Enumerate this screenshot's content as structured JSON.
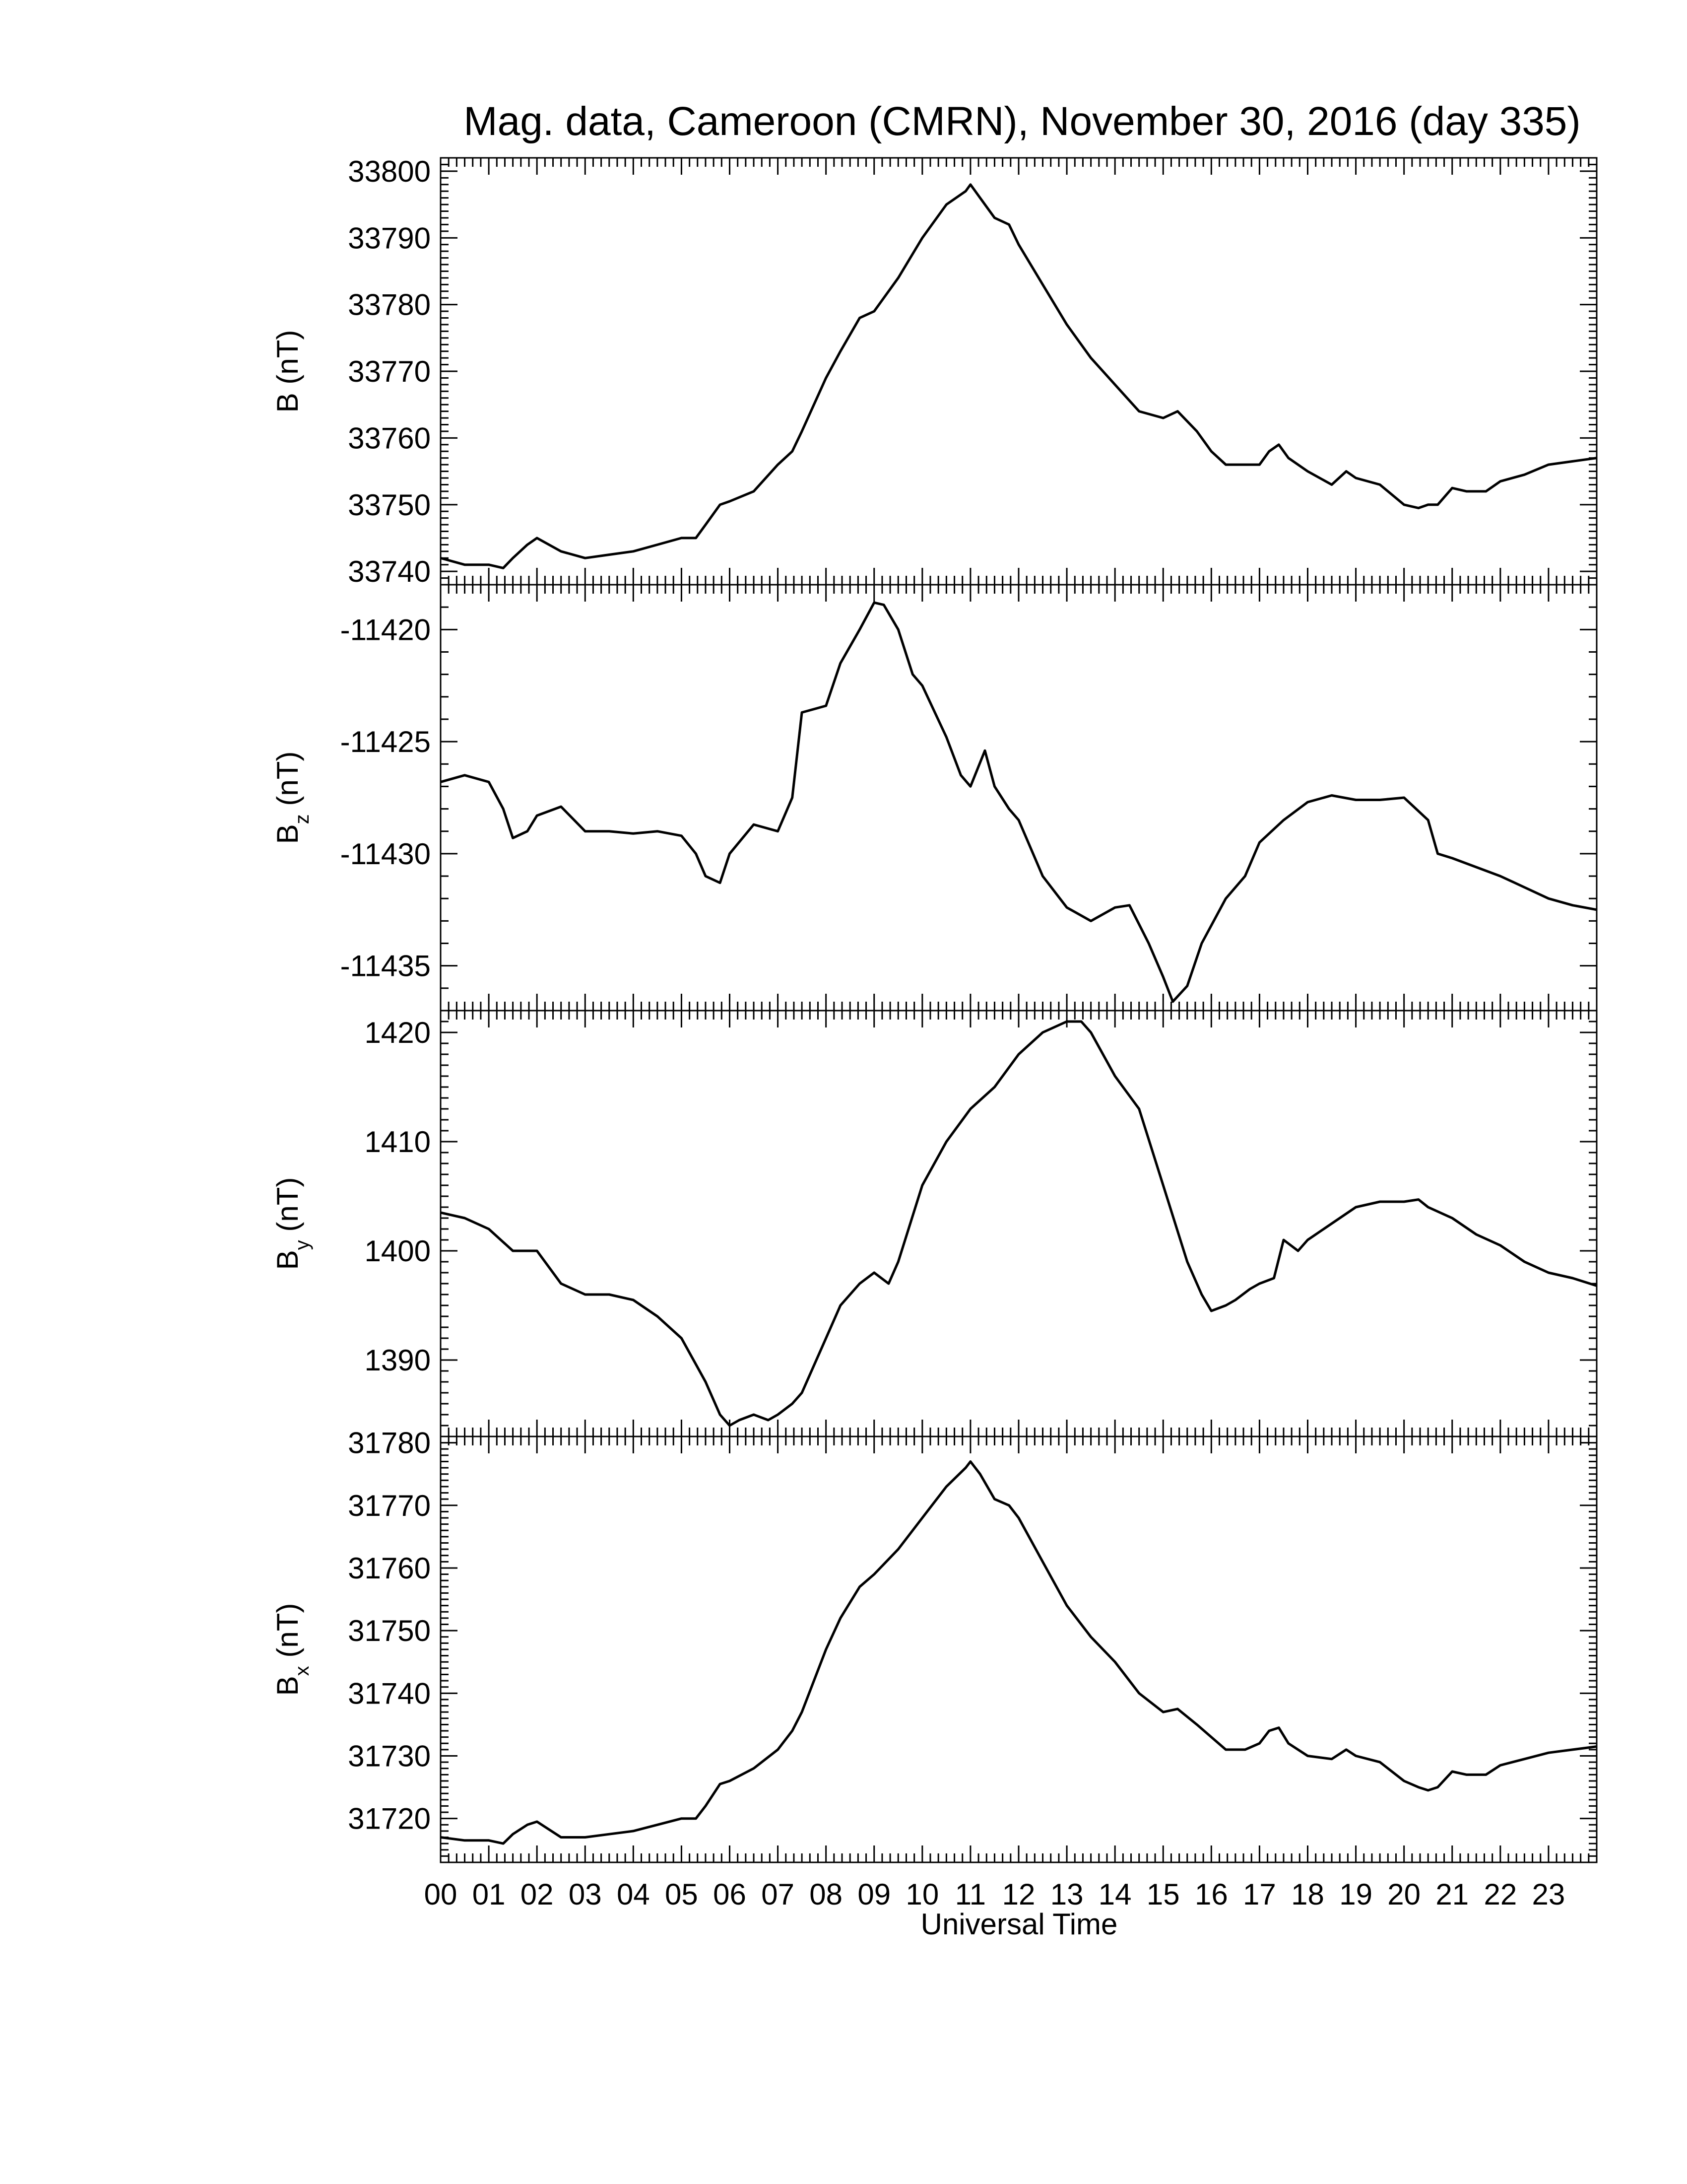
{
  "chart_data": {
    "type": "line",
    "title": "Mag. data, Cameroon (CMRN), November 30, 2016 (day 335)",
    "xlabel": "Universal Time",
    "x_ticks": [
      "00",
      "01",
      "02",
      "03",
      "04",
      "05",
      "06",
      "07",
      "08",
      "09",
      "10",
      "11",
      "12",
      "13",
      "14",
      "15",
      "16",
      "17",
      "18",
      "19",
      "20",
      "21",
      "22",
      "23"
    ],
    "xlim": [
      0,
      24
    ],
    "panels": [
      {
        "label_main": "B",
        "label_sub": "",
        "label_unit": "(nT)",
        "ylim": [
          33738,
          33802
        ],
        "y_ticks": [
          33740,
          33750,
          33760,
          33770,
          33780,
          33790,
          33800
        ],
        "series": [
          {
            "x": [
              0,
              0.5,
              1.0,
              1.3,
              1.5,
              1.8,
              2.0,
              2.5,
              3.0,
              3.5,
              4.0,
              4.5,
              5.0,
              5.3,
              5.5,
              5.8,
              6.0,
              6.5,
              7.0,
              7.3,
              7.5,
              8.0,
              8.3,
              8.7,
              9.0,
              9.5,
              10.0,
              10.5,
              10.9,
              11.0,
              11.1,
              11.2,
              11.5,
              11.8,
              12.0,
              12.5,
              13.0,
              13.5,
              14.0,
              14.5,
              15.0,
              15.3,
              15.7,
              16.0,
              16.3,
              16.7,
              17.0,
              17.2,
              17.4,
              17.6,
              18.0,
              18.5,
              18.8,
              19.0,
              19.5,
              20.0,
              20.3,
              20.5,
              20.7,
              21.0,
              21.3,
              21.7,
              22.0,
              22.5,
              23.0,
              23.5,
              24.0
            ],
            "y": [
              33742,
              33741,
              33741,
              33740.5,
              33742,
              33744,
              33745,
              33743,
              33742,
              33742.5,
              33743,
              33744,
              33745,
              33745,
              33747,
              33750,
              33750.5,
              33752,
              33756,
              33758,
              33761,
              33769,
              33773,
              33778,
              33779,
              33784,
              33790,
              33795,
              33797,
              33798,
              33797,
              33796,
              33793,
              33792,
              33789,
              33783,
              33777,
              33772,
              33768,
              33764,
              33763,
              33764,
              33761,
              33758,
              33756,
              33756,
              33756,
              33758,
              33759,
              33757,
              33755,
              33753,
              33755,
              33754,
              33753,
              33750,
              33749.5,
              33750,
              33750,
              33752.5,
              33752,
              33752,
              33753.5,
              33754.5,
              33756,
              33756.5,
              33757
            ]
          }
        ]
      },
      {
        "label_main": "B",
        "label_sub": "z",
        "label_unit": "(nT)",
        "ylim": [
          -11437,
          -11418
        ],
        "y_ticks": [
          -11420,
          -11425,
          -11430,
          -11435
        ],
        "series": [
          {
            "x": [
              0,
              0.5,
              1.0,
              1.3,
              1.5,
              1.8,
              2.0,
              2.5,
              3.0,
              3.5,
              4.0,
              4.5,
              5.0,
              5.3,
              5.5,
              5.8,
              6.0,
              6.5,
              7.0,
              7.3,
              7.5,
              8.0,
              8.3,
              8.7,
              9.0,
              9.2,
              9.5,
              9.8,
              10.0,
              10.5,
              10.8,
              11.0,
              11.3,
              11.5,
              11.8,
              12.0,
              12.5,
              13.0,
              13.5,
              14.0,
              14.3,
              14.7,
              15.0,
              15.2,
              15.5,
              15.8,
              16.0,
              16.3,
              16.7,
              17.0,
              17.5,
              18.0,
              18.5,
              19.0,
              19.5,
              20.0,
              20.5,
              20.7,
              21.0,
              21.5,
              22.0,
              22.5,
              23.0,
              23.5,
              24.0
            ],
            "y": [
              -11426.8,
              -11426.5,
              -11426.8,
              -11428,
              -11429.3,
              -11429,
              -11428.3,
              -11427.9,
              -11429,
              -11429,
              -11429.1,
              -11429,
              -11429.2,
              -11430,
              -11431,
              -11431.3,
              -11430,
              -11428.7,
              -11429,
              -11427.5,
              -11423.7,
              -11423.4,
              -11421.5,
              -11420,
              -11418.8,
              -11418.9,
              -11420,
              -11422,
              -11422.5,
              -11424.8,
              -11426.5,
              -11427,
              -11425.4,
              -11427,
              -11428,
              -11428.5,
              -11431,
              -11432.4,
              -11433,
              -11432.4,
              -11432.3,
              -11434,
              -11435.5,
              -11436.6,
              -11435.9,
              -11434,
              -11433.2,
              -11432,
              -11431,
              -11429.5,
              -11428.5,
              -11427.7,
              -11427.4,
              -11427.6,
              -11427.6,
              -11427.5,
              -11428.5,
              -11430,
              -11430.2,
              -11430.6,
              -11431,
              -11431.5,
              -11432,
              -11432.3,
              -11432.5
            ]
          }
        ]
      },
      {
        "label_main": "B",
        "label_sub": "y",
        "label_unit": "(nT)",
        "ylim": [
          1383,
          1422
        ],
        "y_ticks": [
          1390,
          1400,
          1410,
          1420
        ],
        "series": [
          {
            "x": [
              0,
              0.5,
              1.0,
              1.5,
              2.0,
              2.5,
              3.0,
              3.5,
              4.0,
              4.5,
              5.0,
              5.5,
              5.8,
              6.0,
              6.2,
              6.5,
              6.8,
              7.0,
              7.3,
              7.5,
              8.0,
              8.3,
              8.7,
              9.0,
              9.3,
              9.5,
              10.0,
              10.5,
              11.0,
              11.5,
              12.0,
              12.5,
              13.0,
              13.3,
              13.5,
              14.0,
              14.5,
              15.0,
              15.5,
              15.8,
              16.0,
              16.3,
              16.5,
              16.8,
              17.0,
              17.3,
              17.5,
              17.8,
              18.0,
              18.5,
              19.0,
              19.5,
              20.0,
              20.3,
              20.5,
              21.0,
              21.5,
              22.0,
              22.5,
              23.0,
              23.5,
              24.0
            ],
            "y": [
              1403.5,
              1403,
              1402,
              1400,
              1400,
              1397,
              1396,
              1396,
              1395.5,
              1394,
              1392,
              1388,
              1385,
              1384,
              1384.5,
              1385,
              1384.5,
              1385,
              1386,
              1387,
              1392,
              1395,
              1397,
              1398,
              1397,
              1399,
              1406,
              1410,
              1413,
              1415,
              1418,
              1420,
              1421,
              1421,
              1420,
              1416,
              1413,
              1406,
              1399,
              1396,
              1394.5,
              1395,
              1395.5,
              1396.5,
              1397,
              1397.5,
              1401,
              1400,
              1401,
              1402.5,
              1404,
              1404.5,
              1404.5,
              1404.7,
              1404,
              1403,
              1401.5,
              1400.5,
              1399,
              1398,
              1397.5,
              1396.8
            ]
          }
        ]
      },
      {
        "label_main": "B",
        "label_sub": "x",
        "label_unit": "(nT)",
        "ylim": [
          31713,
          31781
        ],
        "y_ticks": [
          31720,
          31730,
          31740,
          31750,
          31760,
          31770,
          31780
        ],
        "series": [
          {
            "x": [
              0,
              0.5,
              1.0,
              1.3,
              1.5,
              1.8,
              2.0,
              2.5,
              3.0,
              3.5,
              4.0,
              4.5,
              5.0,
              5.3,
              5.5,
              5.8,
              6.0,
              6.5,
              7.0,
              7.3,
              7.5,
              8.0,
              8.3,
              8.7,
              9.0,
              9.5,
              10.0,
              10.5,
              10.9,
              11.0,
              11.1,
              11.2,
              11.5,
              11.8,
              12.0,
              12.5,
              13.0,
              13.5,
              14.0,
              14.5,
              15.0,
              15.3,
              15.7,
              16.0,
              16.3,
              16.7,
              17.0,
              17.2,
              17.4,
              17.6,
              18.0,
              18.5,
              18.8,
              19.0,
              19.5,
              20.0,
              20.3,
              20.5,
              20.7,
              21.0,
              21.3,
              21.7,
              22.0,
              22.5,
              23.0,
              23.5,
              24.0
            ],
            "y": [
              31717,
              31716.5,
              31716.5,
              31716,
              31717.5,
              31719,
              31719.5,
              31717,
              31717,
              31717.5,
              31718,
              31719,
              31720,
              31720,
              31722,
              31725.5,
              31726,
              31728,
              31731,
              31734,
              31737,
              31747,
              31752,
              31757,
              31759,
              31763,
              31768,
              31773,
              31776,
              31777,
              31776,
              31775,
              31771,
              31770,
              31768,
              31761,
              31754,
              31749,
              31745,
              31740,
              31737,
              31737.5,
              31735,
              31733,
              31731,
              31731,
              31732,
              31734,
              31734.5,
              31732,
              31730,
              31729.5,
              31731,
              31730,
              31729,
              31726,
              31725,
              31724.5,
              31725,
              31727.5,
              31727,
              31727,
              31728.5,
              31729.5,
              31730.5,
              31731,
              31731.5
            ]
          }
        ]
      }
    ]
  }
}
